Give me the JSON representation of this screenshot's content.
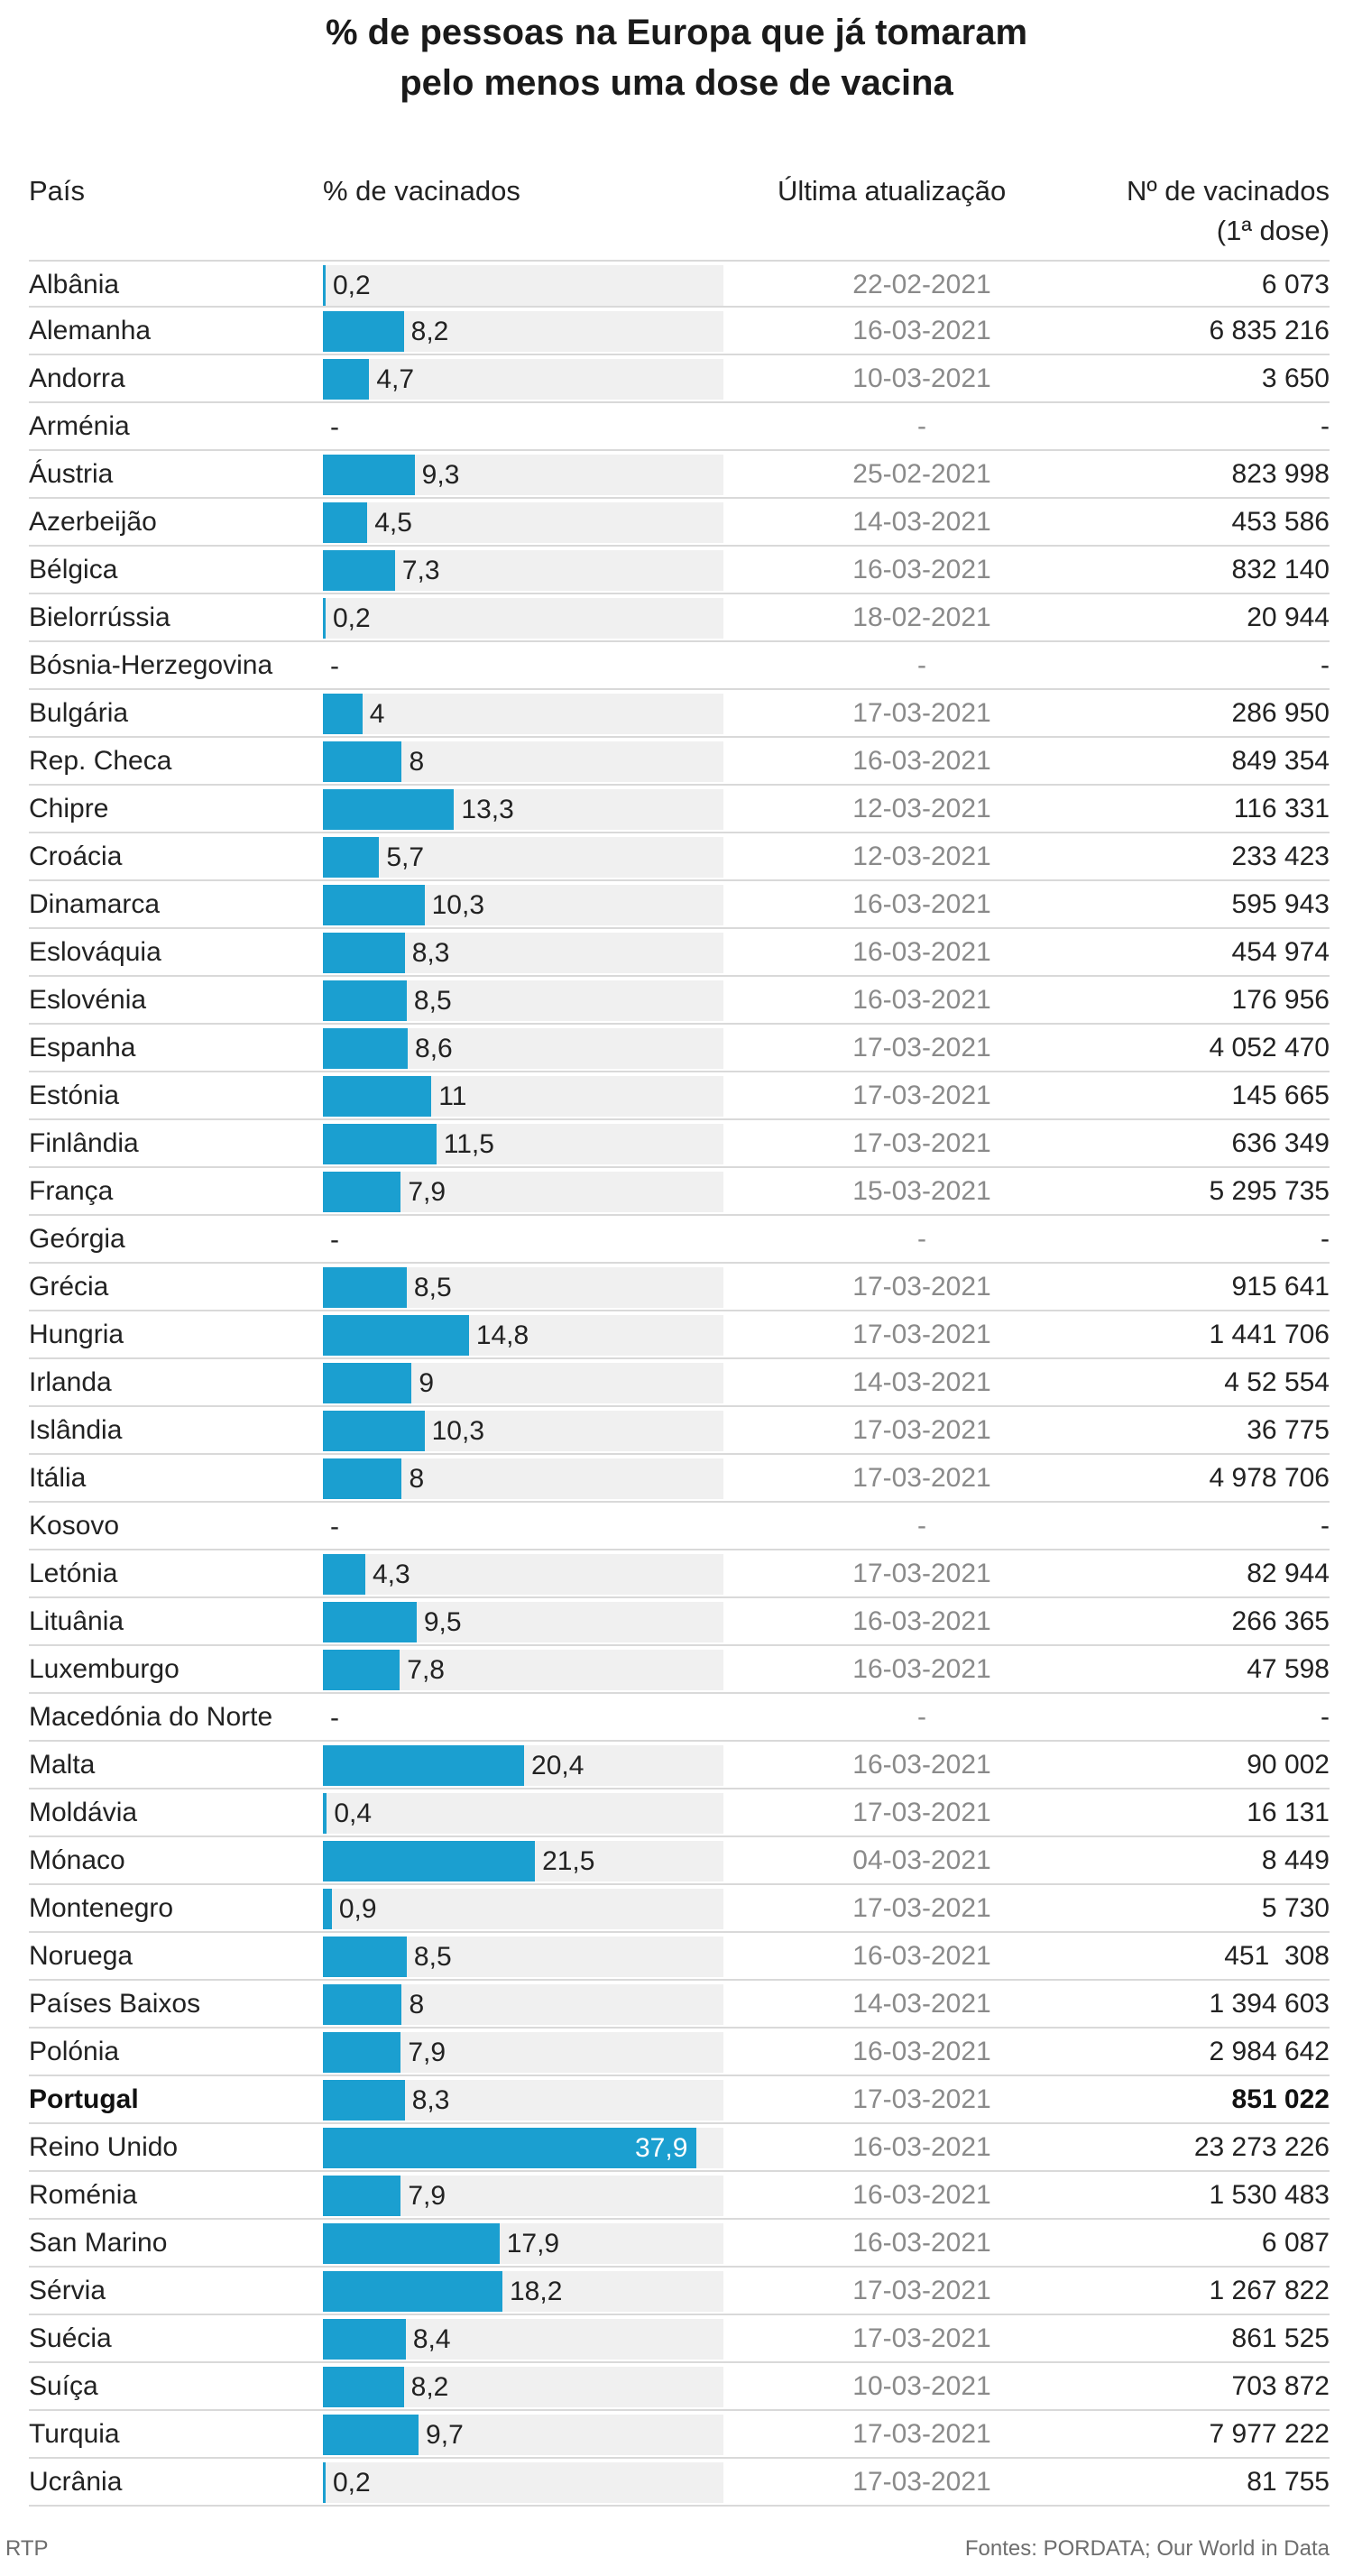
{
  "chart_data": {
    "type": "table",
    "title_line1": "% de pessoas na Europa que já tomaram",
    "title_line2": "pelo menos uma dose de vacina",
    "columns": {
      "country": "País",
      "pct": "% de vacinados",
      "date": "Última atualização",
      "count_line1": "Nº de vacinados",
      "count_line2": "(1ª dose)"
    },
    "xlim": [
      0,
      40
    ],
    "rows": [
      {
        "country": "Albânia",
        "value": 0.2,
        "label": "0,2",
        "date": "22-02-2021",
        "count": "6 073"
      },
      {
        "country": "Alemanha",
        "value": 8.2,
        "label": "8,2",
        "date": "16-03-2021",
        "count": "6 835 216"
      },
      {
        "country": "Andorra",
        "value": 4.7,
        "label": "4,7",
        "date": "10-03-2021",
        "count": "3 650"
      },
      {
        "country": "Arménia",
        "value": null,
        "label": "-",
        "date": "-",
        "count": "-"
      },
      {
        "country": "Áustria",
        "value": 9.3,
        "label": "9,3",
        "date": "25-02-2021",
        "count": "823 998"
      },
      {
        "country": "Azerbeijão",
        "value": 4.5,
        "label": "4,5",
        "date": "14-03-2021",
        "count": "453 586"
      },
      {
        "country": "Bélgica",
        "value": 7.3,
        "label": "7,3",
        "date": "16-03-2021",
        "count": "832 140"
      },
      {
        "country": "Bielorrússia",
        "value": 0.2,
        "label": "0,2",
        "date": "18-02-2021",
        "count": "20 944"
      },
      {
        "country": "Bósnia-Herzegovina",
        "value": null,
        "label": "-",
        "date": "-",
        "count": "-"
      },
      {
        "country": "Bulgária",
        "value": 4,
        "label": "4",
        "date": "17-03-2021",
        "count": "286 950"
      },
      {
        "country": "Rep. Checa",
        "value": 8,
        "label": "8",
        "date": "16-03-2021",
        "count": "849 354"
      },
      {
        "country": "Chipre",
        "value": 13.3,
        "label": "13,3",
        "date": "12-03-2021",
        "count": "116 331"
      },
      {
        "country": "Croácia",
        "value": 5.7,
        "label": "5,7",
        "date": "12-03-2021",
        "count": "233 423"
      },
      {
        "country": "Dinamarca",
        "value": 10.3,
        "label": "10,3",
        "date": "16-03-2021",
        "count": "595 943"
      },
      {
        "country": "Eslováquia",
        "value": 8.3,
        "label": "8,3",
        "date": "16-03-2021",
        "count": "454 974"
      },
      {
        "country": "Eslovénia",
        "value": 8.5,
        "label": "8,5",
        "date": "16-03-2021",
        "count": "176 956"
      },
      {
        "country": "Espanha",
        "value": 8.6,
        "label": "8,6",
        "date": "17-03-2021",
        "count": "4 052 470"
      },
      {
        "country": "Estónia",
        "value": 11,
        "label": "11",
        "date": "17-03-2021",
        "count": "145 665"
      },
      {
        "country": "Finlândia",
        "value": 11.5,
        "label": "11,5",
        "date": "17-03-2021",
        "count": "636 349"
      },
      {
        "country": "França",
        "value": 7.9,
        "label": "7,9",
        "date": "15-03-2021",
        "count": "5 295 735"
      },
      {
        "country": "Geórgia",
        "value": null,
        "label": "-",
        "date": "-",
        "count": "-"
      },
      {
        "country": "Grécia",
        "value": 8.5,
        "label": "8,5",
        "date": "17-03-2021",
        "count": "915 641"
      },
      {
        "country": "Hungria",
        "value": 14.8,
        "label": "14,8",
        "date": "17-03-2021",
        "count": "1 441 706"
      },
      {
        "country": "Irlanda",
        "value": 9,
        "label": "9",
        "date": "14-03-2021",
        "count": "4 52 554"
      },
      {
        "country": "Islândia",
        "value": 10.3,
        "label": "10,3",
        "date": "17-03-2021",
        "count": "36 775"
      },
      {
        "country": "Itália",
        "value": 8,
        "label": "8",
        "date": "17-03-2021",
        "count": "4 978 706"
      },
      {
        "country": "Kosovo",
        "value": null,
        "label": "-",
        "date": "-",
        "count": "-"
      },
      {
        "country": "Letónia",
        "value": 4.3,
        "label": "4,3",
        "date": "17-03-2021",
        "count": "82 944"
      },
      {
        "country": "Lituânia",
        "value": 9.5,
        "label": "9,5",
        "date": "16-03-2021",
        "count": "266 365"
      },
      {
        "country": "Luxemburgo",
        "value": 7.8,
        "label": "7,8",
        "date": "16-03-2021",
        "count": "47 598"
      },
      {
        "country": "Macedónia do Norte",
        "value": null,
        "label": "-",
        "date": "-",
        "count": "-"
      },
      {
        "country": "Malta",
        "value": 20.4,
        "label": "20,4",
        "date": "16-03-2021",
        "count": "90 002"
      },
      {
        "country": "Moldávia",
        "value": 0.4,
        "label": "0,4",
        "date": "17-03-2021",
        "count": "16 131"
      },
      {
        "country": "Mónaco",
        "value": 21.5,
        "label": "21,5",
        "date": "04-03-2021",
        "count": "8 449"
      },
      {
        "country": "Montenegro",
        "value": 0.9,
        "label": "0,9",
        "date": "17-03-2021",
        "count": "5 730"
      },
      {
        "country": "Noruega",
        "value": 8.5,
        "label": "8,5",
        "date": "16-03-2021",
        "count": "451  308"
      },
      {
        "country": "Países Baixos",
        "value": 8,
        "label": "8",
        "date": "14-03-2021",
        "count": "1 394 603"
      },
      {
        "country": "Polónia",
        "value": 7.9,
        "label": "7,9",
        "date": "16-03-2021",
        "count": "2 984 642"
      },
      {
        "country": "Portugal",
        "value": 8.3,
        "label": "8,3",
        "date": "17-03-2021",
        "count": "851 022",
        "bold": true
      },
      {
        "country": "Reino Unido",
        "value": 37.9,
        "label": "37,9",
        "date": "16-03-2021",
        "count": "23 273 226"
      },
      {
        "country": "Roménia",
        "value": 7.9,
        "label": "7,9",
        "date": "16-03-2021",
        "count": "1 530 483"
      },
      {
        "country": "San Marino",
        "value": 17.9,
        "label": "17,9",
        "date": "16-03-2021",
        "count": "6 087"
      },
      {
        "country": "Sérvia",
        "value": 18.2,
        "label": "18,2",
        "date": "17-03-2021",
        "count": "1 267 822"
      },
      {
        "country": "Suécia",
        "value": 8.4,
        "label": "8,4",
        "date": "17-03-2021",
        "count": "861 525"
      },
      {
        "country": "Suíça",
        "value": 8.2,
        "label": "8,2",
        "date": "10-03-2021",
        "count": "703 872"
      },
      {
        "country": "Turquia",
        "value": 9.7,
        "label": "9,7",
        "date": "17-03-2021",
        "count": "7 977 222"
      },
      {
        "country": "Ucrânia",
        "value": 0.2,
        "label": "0,2",
        "date": "17-03-2021",
        "count": "81 755"
      }
    ],
    "colors": {
      "bar": "#1b9fd0",
      "track": "#f0f0f0"
    }
  },
  "footer": {
    "credit": "RTP",
    "source": "Fontes: PORDATA; Our World in Data"
  }
}
